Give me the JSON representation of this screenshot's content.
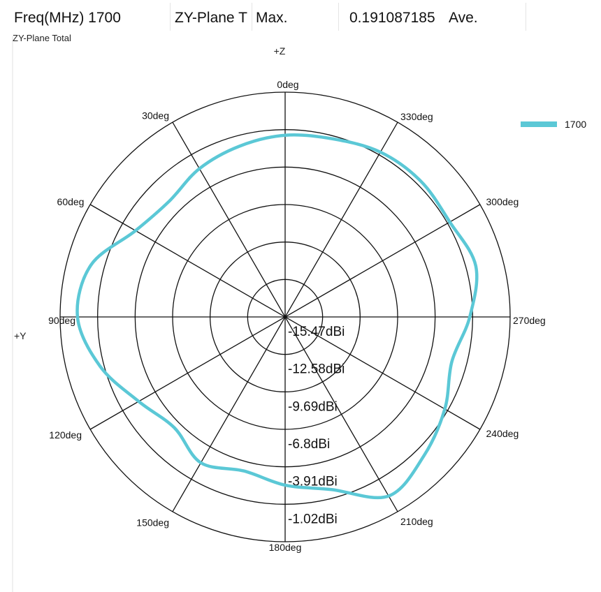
{
  "header": {
    "freq_label": "Freq(MHz) 1700",
    "plane_label": "ZY-Plane T",
    "max_label": "Max.",
    "max_value": "0.191087185",
    "ave_label": "Ave."
  },
  "chart_data": {
    "type": "polar-line",
    "title": "ZY-Plane Total",
    "top_axis_label": "+Z",
    "left_axis_label": "+Y",
    "unit": "dBi",
    "radial_range": [
      -18.36,
      -1.02
    ],
    "ring_labels": [
      "-15.47dBi",
      "-12.58dBi",
      "-9.69dBi",
      "-6.8dBi",
      "-3.91dBi",
      "-1.02dBi"
    ],
    "angle_labels": [
      "0deg",
      "330deg",
      "300deg",
      "270deg",
      "240deg",
      "210deg",
      "180deg",
      "150deg",
      "120deg",
      "90deg",
      "60deg",
      "30deg"
    ],
    "legend_position": "top-right",
    "series": [
      {
        "name": "1700",
        "color": "#5bc8d6",
        "angles": [
          0,
          15,
          30,
          45,
          60,
          75,
          90,
          105,
          120,
          135,
          150,
          165,
          180,
          195,
          210,
          225,
          240,
          255,
          270,
          285,
          300,
          315,
          330,
          345
        ],
        "values": [
          -4.34,
          -4.73,
          -5.15,
          -5.73,
          -5.05,
          -2.87,
          -2.36,
          -3.61,
          -5.33,
          -6.28,
          -5.37,
          -6.06,
          -5.39,
          -4.58,
          -2.41,
          -3.23,
          -4.15,
          -5.06,
          -4.13,
          -3.15,
          -3.71,
          -3.56,
          -3.68,
          -4.14
        ]
      }
    ]
  }
}
